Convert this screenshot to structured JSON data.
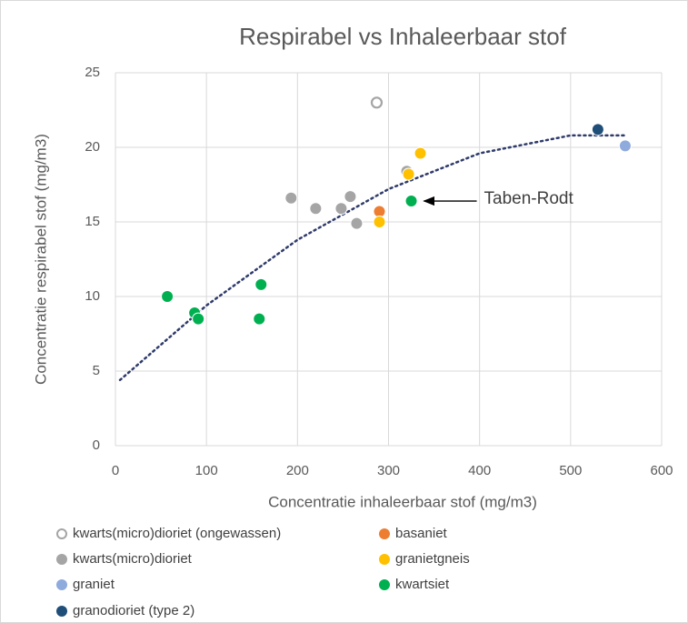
{
  "chart_data": {
    "type": "scatter",
    "title": "Respirabel vs Inhaleerbaar stof",
    "x_label": "Concentratie inhaleerbaar stof (mg/m3)",
    "y_label": "Concentratie respirabel stof (mg/m3)",
    "xlim": [
      0,
      600
    ],
    "ylim": [
      0,
      25
    ],
    "xticks": [
      0,
      100,
      200,
      300,
      400,
      500,
      600
    ],
    "yticks": [
      0,
      5,
      10,
      15,
      20,
      25
    ],
    "grid": true,
    "series": [
      {
        "name": "kwarts(micro)dioriet (ongewassen)",
        "color": "#a5a5a5",
        "hollow": true,
        "x": [
          287
        ],
        "values": [
          23.0
        ]
      },
      {
        "name": "basaniet",
        "color": "#ed7d31",
        "x": [
          290
        ],
        "values": [
          15.7
        ]
      },
      {
        "name": "kwarts(micro)dioriet",
        "color": "#a5a5a5",
        "x": [
          193,
          220,
          248,
          258,
          265,
          320
        ],
        "values": [
          16.6,
          15.9,
          15.9,
          16.7,
          14.9,
          18.4
        ]
      },
      {
        "name": "granietgneis",
        "color": "#ffc000",
        "x": [
          290,
          322,
          335
        ],
        "values": [
          15.0,
          18.2,
          19.6
        ]
      },
      {
        "name": "graniet",
        "color": "#8faadc",
        "x": [
          560
        ],
        "values": [
          20.1
        ]
      },
      {
        "name": "kwartsiet",
        "color": "#00b050",
        "x": [
          57,
          87,
          91,
          158,
          160,
          325
        ],
        "values": [
          10.0,
          8.9,
          8.5,
          8.5,
          10.8,
          16.4
        ]
      },
      {
        "name": "granodioriet (type 2)",
        "color": "#1f4e79",
        "x": [
          530
        ],
        "values": [
          21.2
        ]
      }
    ],
    "trendline": {
      "color": "#2f3b6b",
      "x": [
        5,
        100,
        200,
        300,
        400,
        500,
        560
      ],
      "values": [
        4.4,
        9.4,
        13.8,
        17.2,
        19.6,
        20.8,
        20.8
      ]
    },
    "annotation": {
      "text": "Taben-Rodt"
    }
  }
}
